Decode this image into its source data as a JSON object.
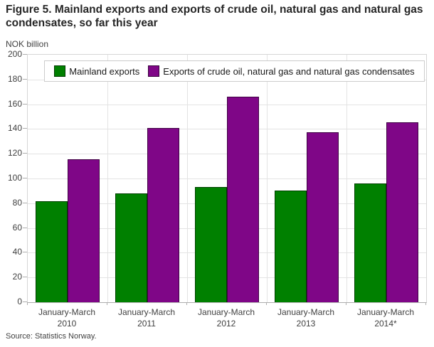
{
  "source": "Source: Statistics Norway.",
  "colors": {
    "grid": "#e3e3e3",
    "axis": "#adadad",
    "text": "#404040",
    "title_text": "#262626"
  },
  "chart_data": {
    "type": "bar",
    "title": "Figure 5. Mainland exports and exports of crude oil, natural gas and natural gas condensates, so far this year",
    "unit_label": "NOK billion",
    "categories": [
      "January-March 2010",
      "January-March 2011",
      "January-March 2012",
      "January-March 2013",
      "January-March 2014*"
    ],
    "series": [
      {
        "name": "Mainland exports",
        "color": "#008000",
        "values": [
          81.5,
          88,
          93,
          90,
          96
        ]
      },
      {
        "name": "Exports of crude oil, natural gas and natural gas condensates",
        "color": "#7f0687",
        "values": [
          115.5,
          141,
          166,
          137.5,
          145.5
        ]
      }
    ],
    "ylim": [
      0,
      200
    ],
    "ytick_step": 20,
    "grid": true,
    "legend_position": "top"
  }
}
